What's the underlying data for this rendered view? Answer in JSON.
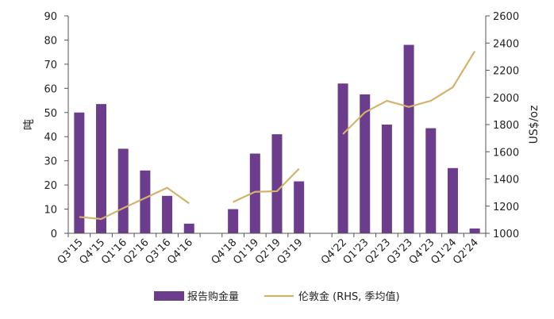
{
  "chart_data": {
    "type": "bar",
    "categories": [
      "Q3'15",
      "Q4'15",
      "Q1'16",
      "Q2'16",
      "Q3'16",
      "Q4'16",
      "",
      "Q4'18",
      "Q1'19",
      "Q2'19",
      "Q3'19",
      "",
      "Q4'22",
      "Q1'23",
      "Q2'23",
      "Q3'23",
      "Q4'23",
      "Q1'24",
      "Q2'24"
    ],
    "series": [
      {
        "name": "报告购金量",
        "type": "bar",
        "axis": "left",
        "color": "#6b3d8c",
        "values": [
          50,
          53.5,
          35,
          26,
          15.5,
          4,
          null,
          10,
          33,
          41,
          21.5,
          null,
          62,
          57.5,
          45,
          78,
          43.5,
          27,
          2
        ]
      },
      {
        "name": "伦敦金 (RHS, 季均值)",
        "type": "line",
        "axis": "right",
        "color": "#d4b26b",
        "values": [
          1120,
          1105,
          1185,
          1260,
          1335,
          1220,
          null,
          1230,
          1305,
          1310,
          1475,
          null,
          1730,
          1890,
          1975,
          1930,
          1975,
          2075,
          2340
        ]
      }
    ],
    "y_left": {
      "label": "吨",
      "min": 0,
      "max": 90,
      "step": 10
    },
    "y_right": {
      "label": "US$/oz",
      "min": 1000,
      "max": 2600,
      "step": 200
    },
    "legend_position": "bottom-center",
    "grid": false
  }
}
